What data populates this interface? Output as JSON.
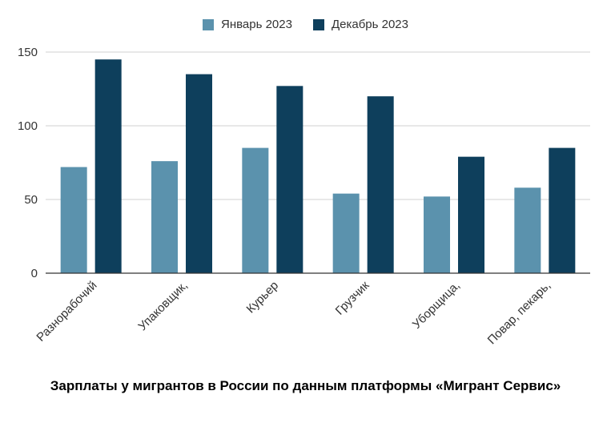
{
  "chart_data": {
    "type": "bar",
    "categories": [
      "Разнорабочий",
      "Упаковщик,",
      "Курьер",
      "Грузчик",
      "Уборщица,",
      "Повар, пекарь,"
    ],
    "series": [
      {
        "name": "Январь 2023",
        "color": "#5b92ad",
        "values": [
          72,
          76,
          85,
          54,
          52,
          58
        ]
      },
      {
        "name": "Декабрь 2023",
        "color": "#0e3f5c",
        "values": [
          145,
          135,
          127,
          120,
          79,
          85
        ]
      }
    ],
    "yticks": [
      0,
      50,
      100,
      150
    ],
    "ylim": [
      0,
      150
    ],
    "grid": true,
    "legend_position": "top-center",
    "title": "",
    "xlabel": "",
    "ylabel": ""
  },
  "caption": "Зарплаты у мигрантов в России по данным платформы «Мигрант Сервис»"
}
